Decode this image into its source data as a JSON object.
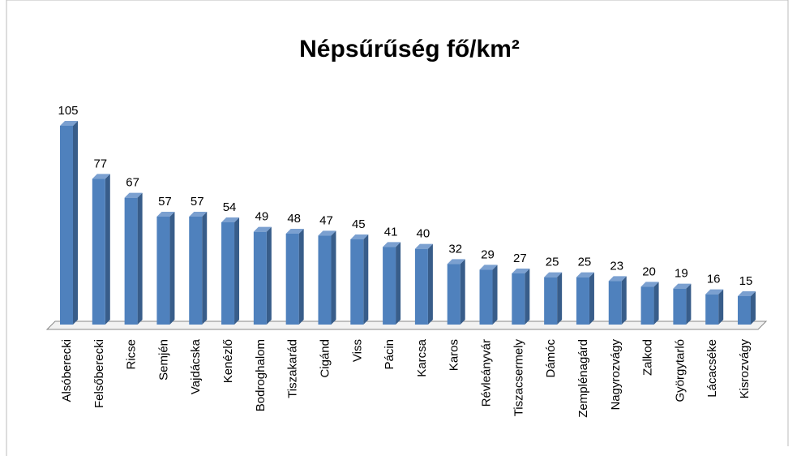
{
  "chart_data": {
    "type": "bar",
    "title": "Népsűrűség fő/km²",
    "categories": [
      "Alsóberecki",
      "Felsőberecki",
      "Ricse",
      "Semjén",
      "Vajdácska",
      "Kenézlő",
      "Bodroghalom",
      "Tiszakarád",
      "Cigánd",
      "Viss",
      "Pácin",
      "Karcsa",
      "Karos",
      "Révleányvár",
      "Tiszacsermely",
      "Dámóc",
      "Zemplénagárd",
      "Nagyrozvágy",
      "Zalkod",
      "Györgytarló",
      "Lácacséke",
      "Kisrozvágy"
    ],
    "values": [
      105,
      77,
      67,
      57,
      57,
      54,
      49,
      48,
      47,
      45,
      41,
      40,
      32,
      29,
      27,
      25,
      25,
      23,
      20,
      19,
      16,
      15
    ],
    "color": "#4f81bd"
  }
}
